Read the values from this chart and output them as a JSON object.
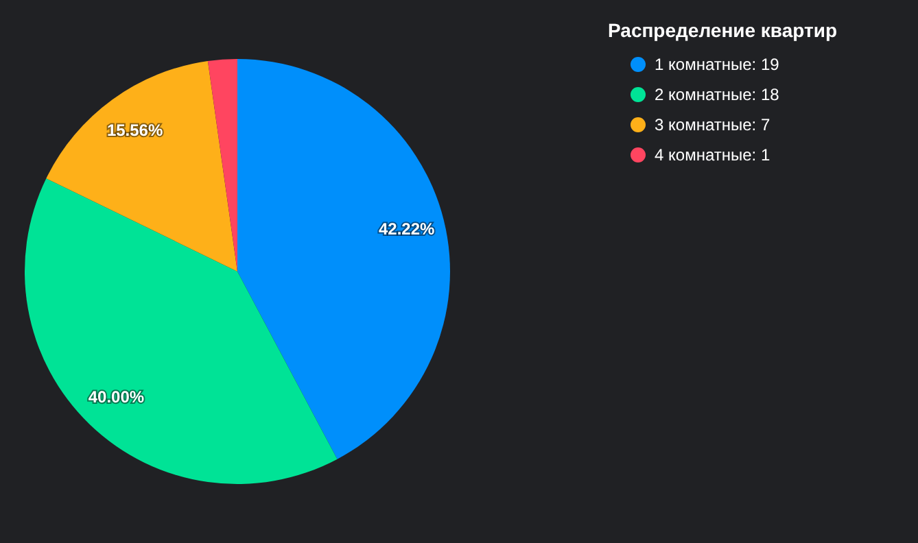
{
  "chart_data": {
    "type": "pie",
    "legend_title": "Распределение квартир",
    "categories": [
      "1 комнатные: 19",
      "2 комнатные: 18",
      "3 комнатные: 7",
      "4 комнатные: 1"
    ],
    "values": [
      42.22,
      40.0,
      15.56,
      2.22
    ],
    "colors": [
      "#008ffb",
      "#00e396",
      "#feb019",
      "#ff4560"
    ],
    "value_labels": [
      "42.22%",
      "40.00%",
      "15.56%",
      null
    ],
    "legend": "top right"
  }
}
